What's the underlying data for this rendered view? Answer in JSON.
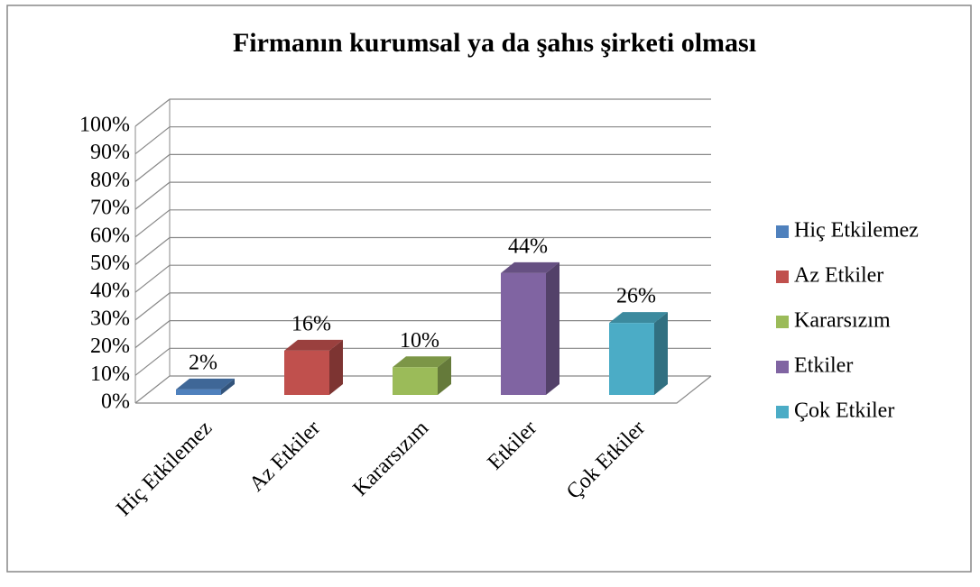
{
  "chart_data": {
    "type": "bar3d",
    "title": "Firmanın kurumsal ya da şahıs şirketi olması",
    "categories": [
      "Hiç Etkilemez",
      "Az Etkiler",
      "Kararsızım",
      "Etkiler",
      "Çok Etkiler"
    ],
    "values": [
      2,
      16,
      10,
      44,
      26
    ],
    "value_labels": [
      "2%",
      "16%",
      "10%",
      "44%",
      "26%"
    ],
    "colors": [
      "#4f81bd",
      "#c0504d",
      "#9bbb59",
      "#8064a2",
      "#4bacc6"
    ],
    "ylim": [
      0,
      100
    ],
    "yticks": [
      {
        "value": 0,
        "label": "0%"
      },
      {
        "value": 10,
        "label": "10%"
      },
      {
        "value": 20,
        "label": "20%"
      },
      {
        "value": 30,
        "label": "30%"
      },
      {
        "value": 40,
        "label": "40%"
      },
      {
        "value": 50,
        "label": "50%"
      },
      {
        "value": 60,
        "label": "60%"
      },
      {
        "value": 70,
        "label": "70%"
      },
      {
        "value": 80,
        "label": "80%"
      },
      {
        "value": 90,
        "label": "90%"
      },
      {
        "value": 100,
        "label": "100%"
      }
    ],
    "grid": true,
    "legend": "right"
  }
}
